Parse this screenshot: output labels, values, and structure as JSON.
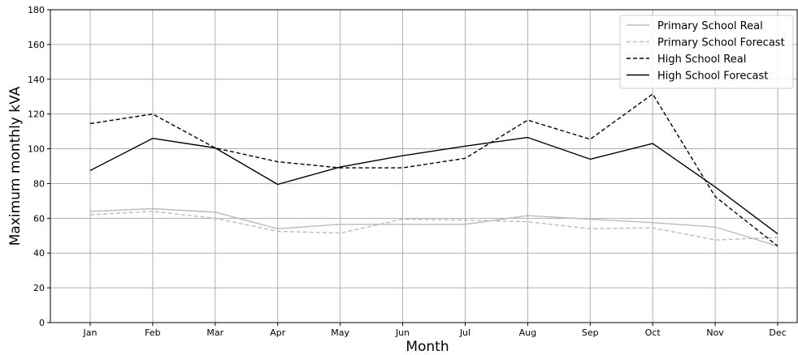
{
  "chart_data": {
    "type": "line",
    "title": "",
    "xlabel": "Month",
    "ylabel": "Maximum monthly kVA",
    "categories": [
      "Jan",
      "Feb",
      "Mar",
      "Apr",
      "May",
      "Jun",
      "Jul",
      "Aug",
      "Sep",
      "Oct",
      "Nov",
      "Dec"
    ],
    "ylim": [
      0,
      180
    ],
    "yticks": [
      0,
      20,
      40,
      60,
      80,
      100,
      120,
      140,
      160,
      180
    ],
    "grid": true,
    "legend_position": "top-right",
    "series": [
      {
        "name": "Primary School Real",
        "color": "#bbbbbb",
        "style": "solid",
        "values": [
          64,
          65.5,
          63.5,
          54,
          56.5,
          56.5,
          56.5,
          61.5,
          59.5,
          57.5,
          55,
          44
        ]
      },
      {
        "name": "Primary School Forecast",
        "color": "#bbbbbb",
        "style": "dashed",
        "values": [
          62,
          64,
          60,
          52.5,
          51.5,
          59.5,
          59,
          58,
          54,
          54.5,
          47.5,
          49
        ]
      },
      {
        "name": "High School Real",
        "color": "#000000",
        "style": "dashed",
        "values": [
          114.5,
          120,
          100.5,
          92.5,
          89,
          89,
          94.5,
          116.5,
          105.5,
          131.5,
          72.5,
          44
        ]
      },
      {
        "name": "High School Forecast",
        "color": "#000000",
        "style": "solid",
        "values": [
          87.5,
          106,
          100.5,
          79.5,
          89.5,
          96,
          101.5,
          106.5,
          94,
          103,
          78,
          51
        ]
      }
    ]
  }
}
